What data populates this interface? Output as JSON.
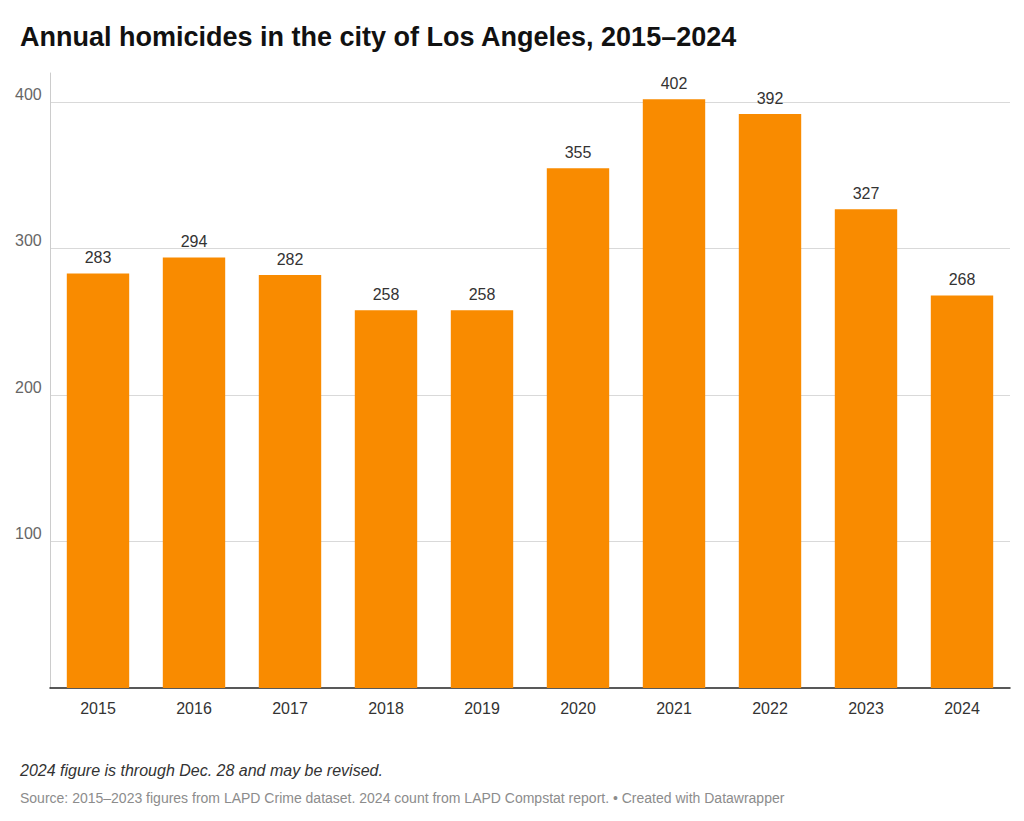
{
  "chart_data": {
    "type": "bar",
    "title": "Annual homicides in the city of Los Angeles, 2015–2024",
    "note": "2024 figure is through Dec. 28 and may be revised.",
    "source": "Source: 2015–2023 figures from LAPD Crime dataset. 2024 count from LAPD Compstat report. • Created with Datawrapper",
    "categories": [
      "2015",
      "2016",
      "2017",
      "2018",
      "2019",
      "2020",
      "2021",
      "2022",
      "2023",
      "2024"
    ],
    "values": [
      283,
      294,
      282,
      258,
      258,
      355,
      402,
      392,
      327,
      268
    ],
    "color": "#f98b00",
    "ylim": [
      0,
      420
    ],
    "yticks": [
      100,
      200,
      300,
      400
    ],
    "grid": true,
    "data_labels": true
  }
}
